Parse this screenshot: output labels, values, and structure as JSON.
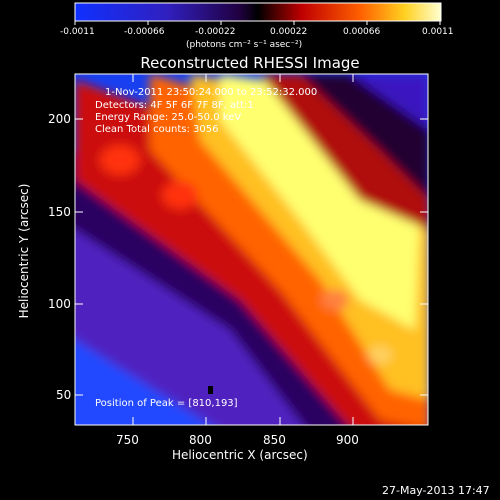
{
  "colorbar": {
    "ticks": [
      "-0.0011",
      "-0.00066",
      "-0.00022",
      "0.00022",
      "0.00066",
      "0.0011"
    ],
    "unit_label": "(photons cm⁻² s⁻¹ asec⁻²)"
  },
  "title": "Reconstructed RHESSI Image",
  "annotations": {
    "line1": "1-Nov-2011 23:50:24.000 to 23:52:32.000",
    "line2": "Detectors: 4F 5F 6F 7F 8F, att:1",
    "line3": "Energy Range: 25.0-50.0 keV",
    "line4": "Clean    Total counts: 3056",
    "peak": "Position of Peak = [810,193]"
  },
  "axes": {
    "xlabel": "Heliocentric X (arcsec)",
    "ylabel": "Heliocentric Y (arcsec)",
    "xticks": [
      "750",
      "800",
      "850",
      "900"
    ],
    "yticks": [
      "200",
      "150",
      "100",
      "50"
    ]
  },
  "footer": {
    "timestamp": "27-May-2013 17:47"
  }
}
